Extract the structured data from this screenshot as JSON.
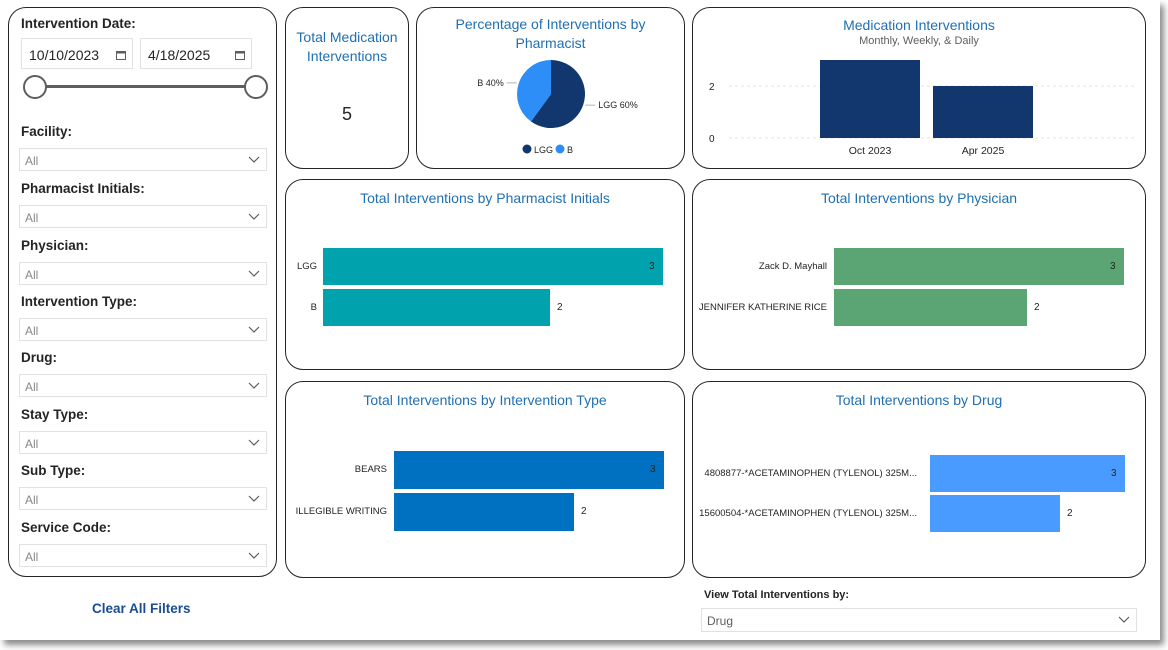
{
  "filters": {
    "date_label": "Intervention Date:",
    "date_start": "10/10/2023",
    "date_end": "4/18/2025",
    "items": [
      {
        "label": "Facility:",
        "value": "All"
      },
      {
        "label": "Pharmacist Initials:",
        "value": "All"
      },
      {
        "label": "Physician:",
        "value": "All"
      },
      {
        "label": "Intervention Type:",
        "value": "All"
      },
      {
        "label": "Drug:",
        "value": "All"
      },
      {
        "label": "Stay Type:",
        "value": "All"
      },
      {
        "label": "Sub Type:",
        "value": "All"
      },
      {
        "label": "Service Code:",
        "value": "All"
      }
    ],
    "clear_label": "Clear All Filters"
  },
  "kpi": {
    "title": "Total Medication Interventions",
    "value": "5"
  },
  "pie": {
    "title": "Percentage of Interventions by Pharmacist",
    "slices": [
      {
        "name": "LGG",
        "value": 60,
        "label": "LGG 60%",
        "color": "#12376e"
      },
      {
        "name": "B",
        "value": 40,
        "label": "B 40%",
        "color": "#2d8ef7"
      }
    ],
    "legend": [
      "LGG",
      "B"
    ]
  },
  "column": {
    "title": "Medication Interventions",
    "subtitle": "Monthly, Weekly, & Daily",
    "categories": [
      "Oct 2023",
      "Apr 2025"
    ],
    "values": [
      3,
      2
    ],
    "y_ticks": [
      "2",
      "0"
    ],
    "color": "#12376e"
  },
  "chart_data": [
    {
      "type": "bar",
      "title": "Total Interventions by Pharmacist Initials",
      "categories": [
        "LGG",
        "B"
      ],
      "values": [
        3,
        2
      ],
      "color": "#00a3ad"
    },
    {
      "type": "bar",
      "title": "Total Interventions by Physician",
      "categories": [
        "Zack D. Mayhall",
        "JENNIFER KATHERINE RICE"
      ],
      "values": [
        3,
        2
      ],
      "color": "#5ba574"
    },
    {
      "type": "bar",
      "title": "Total Interventions by Intervention Type",
      "categories": [
        "BEARS",
        "ILLEGIBLE WRITING"
      ],
      "values": [
        3,
        2
      ],
      "color": "#0070c0"
    },
    {
      "type": "bar",
      "title": "Total Interventions by Drug",
      "categories": [
        "4808877-*ACETAMINOPHEN (TYLENOL) 325M...",
        "15600504-*ACETAMINOPHEN (TYLENOL) 325M..."
      ],
      "values": [
        3,
        2
      ],
      "color": "#4a9bff"
    }
  ],
  "view_by": {
    "label": "View Total Interventions by:",
    "value": "Drug"
  }
}
